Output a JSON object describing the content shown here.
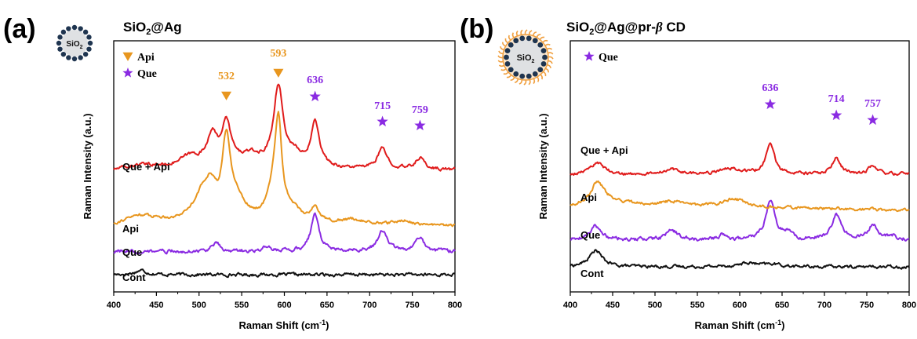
{
  "chart_data": [
    {
      "panel_label": "(a)",
      "type": "line",
      "title": "SiO2@Ag",
      "title_main": "SiO",
      "title_sub": "2",
      "title_rest": "@Ag",
      "particle_label": "SiO2",
      "particle_main": "SiO",
      "particle_sub": "2",
      "xlabel": "Raman Shift (cm",
      "xlabel_sup": "-1",
      "xlabel_close": ")",
      "ylabel": "Raman Intensity (a.u.)",
      "xlim": [
        400,
        800
      ],
      "xticks": [
        "400",
        "450",
        "500",
        "550",
        "600",
        "650",
        "700",
        "750",
        "800"
      ],
      "legend": [
        {
          "marker": "triangle",
          "label": "Api",
          "color": "#e8961e"
        },
        {
          "marker": "star",
          "label": "Que",
          "color": "#8a2be2"
        }
      ],
      "series": [
        {
          "name": "Cont",
          "color": "#111111",
          "offset": 0.0,
          "baseline": [
            [
              400,
              0.0
            ],
            [
              800,
              0.0
            ]
          ],
          "peaks": [
            [
              432,
              0.12,
              8
            ]
          ],
          "noise": 0.035
        },
        {
          "name": "Que",
          "color": "#8a2be2",
          "offset": 0.62,
          "baseline": [
            [
              400,
              0.02
            ],
            [
              800,
              0.02
            ]
          ],
          "peaks": [
            [
              520,
              0.22,
              6
            ],
            [
              580,
              0.12,
              6
            ],
            [
              636,
              1.0,
              6
            ],
            [
              715,
              0.55,
              7
            ],
            [
              759,
              0.38,
              6
            ]
          ],
          "noise": 0.04
        },
        {
          "name": "Api",
          "color": "#e8961e",
          "offset": 1.35,
          "baseline": [
            [
              400,
              0.05
            ],
            [
              430,
              0.28
            ],
            [
              470,
              0.1
            ],
            [
              800,
              0.0
            ]
          ],
          "peaks": [
            [
              505,
              0.8,
              14
            ],
            [
              514,
              0.55,
              6
            ],
            [
              532,
              2.1,
              6
            ],
            [
              545,
              0.5,
              12
            ],
            [
              586,
              0.6,
              8
            ],
            [
              593,
              2.6,
              5
            ],
            [
              610,
              0.3,
              10
            ],
            [
              636,
              0.4,
              6
            ],
            [
              680,
              0.12,
              15
            ],
            [
              740,
              0.12,
              10
            ]
          ],
          "noise": 0.03
        },
        {
          "name": "Que + Api",
          "color": "#e01b1b",
          "offset": 2.9,
          "baseline": [
            [
              400,
              0.0
            ],
            [
              430,
              0.12
            ],
            [
              470,
              0.05
            ],
            [
              800,
              0.0
            ]
          ],
          "peaks": [
            [
              490,
              0.3,
              15
            ],
            [
              515,
              0.8,
              7
            ],
            [
              532,
              1.15,
              7
            ],
            [
              560,
              0.3,
              15
            ],
            [
              593,
              2.2,
              7
            ],
            [
              612,
              0.3,
              8
            ],
            [
              636,
              1.3,
              6
            ],
            [
              715,
              0.55,
              7
            ],
            [
              759,
              0.32,
              6
            ]
          ],
          "noise": 0.035
        }
      ],
      "annotations": [
        {
          "text": "532",
          "x": 532,
          "marker": "triangle",
          "color": "#e8961e"
        },
        {
          "text": "593",
          "x": 593,
          "marker": "triangle",
          "color": "#e8961e"
        },
        {
          "text": "636",
          "x": 636,
          "marker": "star",
          "color": "#8a2be2"
        },
        {
          "text": "715",
          "x": 715,
          "marker": "star",
          "color": "#8a2be2"
        },
        {
          "text": "759",
          "x": 759,
          "marker": "star",
          "color": "#8a2be2"
        }
      ]
    },
    {
      "panel_label": "(b)",
      "type": "line",
      "title": "SiO2@Ag@pr-β CD",
      "title_main": "SiO",
      "title_sub": "2",
      "title_rest": "@Ag@pr-",
      "title_greek": "β",
      "title_end": " CD",
      "particle_label": "SiO2",
      "particle_main": "SiO",
      "particle_sub": "2",
      "xlabel": "Raman Shift (cm",
      "xlabel_sup": "-1",
      "xlabel_close": ")",
      "ylabel": "Raman Intensity (a.u.)",
      "xlim": [
        400,
        800
      ],
      "xticks": [
        "400",
        "450",
        "500",
        "550",
        "600",
        "650",
        "700",
        "750",
        "800"
      ],
      "legend": [
        {
          "marker": "star",
          "label": "Que",
          "color": "#8a2be2"
        }
      ],
      "series": [
        {
          "name": "Cont",
          "color": "#111111",
          "offset": 0.0,
          "baseline": [
            [
              400,
              0.0
            ],
            [
              800,
              0.0
            ]
          ],
          "peaks": [
            [
              430,
              0.55,
              9
            ],
            [
              610,
              0.12,
              15
            ],
            [
              640,
              0.08,
              10
            ]
          ],
          "noise": 0.04
        },
        {
          "name": "Que",
          "color": "#8a2be2",
          "offset": 0.85,
          "baseline": [
            [
              400,
              0.05
            ],
            [
              800,
              0.05
            ]
          ],
          "peaks": [
            [
              430,
              0.45,
              8
            ],
            [
              520,
              0.35,
              7
            ],
            [
              580,
              0.18,
              6
            ],
            [
              636,
              1.35,
              6
            ],
            [
              655,
              0.25,
              6
            ],
            [
              714,
              0.8,
              7
            ],
            [
              757,
              0.5,
              7
            ],
            [
              780,
              0.15,
              5
            ]
          ],
          "noise": 0.05
        },
        {
          "name": "Api",
          "color": "#e8961e",
          "offset": 1.9,
          "baseline": [
            [
              400,
              0.1
            ],
            [
              450,
              0.25
            ],
            [
              500,
              0.15
            ],
            [
              800,
              0.0
            ]
          ],
          "peaks": [
            [
              432,
              0.75,
              10
            ],
            [
              520,
              0.15,
              15
            ],
            [
              592,
              0.28,
              15
            ]
          ],
          "noise": 0.04
        },
        {
          "name": "Que + Api",
          "color": "#e01b1b",
          "offset": 3.1,
          "baseline": [
            [
              400,
              0.0
            ],
            [
              800,
              0.0
            ]
          ],
          "peaks": [
            [
              432,
              0.35,
              10
            ],
            [
              518,
              0.2,
              8
            ],
            [
              590,
              0.18,
              15
            ],
            [
              636,
              1.0,
              6
            ],
            [
              714,
              0.55,
              6
            ],
            [
              757,
              0.3,
              6
            ]
          ],
          "noise": 0.04
        }
      ],
      "annotations": [
        {
          "text": "636",
          "x": 636,
          "marker": "star",
          "color": "#8a2be2"
        },
        {
          "text": "714",
          "x": 714,
          "marker": "star",
          "color": "#8a2be2"
        },
        {
          "text": "757",
          "x": 757,
          "marker": "star",
          "color": "#8a2be2"
        }
      ]
    }
  ]
}
